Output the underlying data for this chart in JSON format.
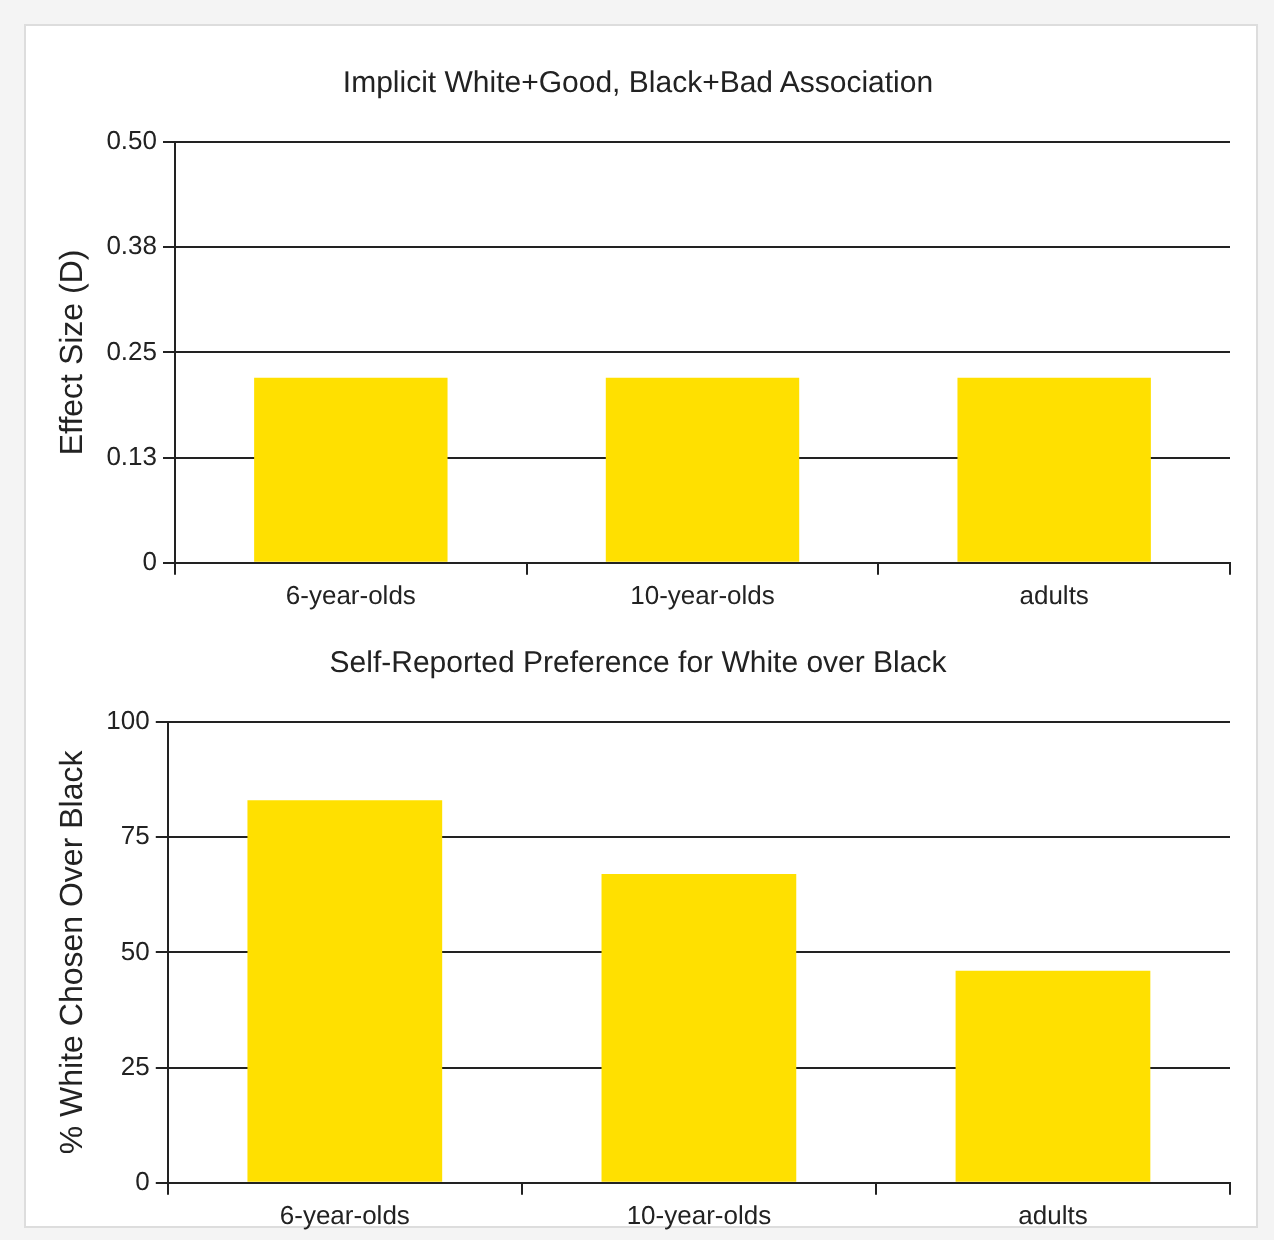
{
  "chart_data": [
    {
      "type": "bar",
      "title": "Implicit White+Good, Black+Bad Association",
      "ylabel": "Effect Size (D)",
      "categories": [
        "6-year-olds",
        "10-year-olds",
        "adults"
      ],
      "values": [
        0.22,
        0.22,
        0.22
      ],
      "color": "#ffe000",
      "ylim": [
        0,
        0.5
      ],
      "yticks": [
        0,
        {
          "value": 0.125,
          "label": "0.13"
        },
        {
          "value": 0.25,
          "label": "0.25"
        },
        {
          "value": 0.375,
          "label": "0.38"
        },
        {
          "value": 0.5,
          "label": "0.50"
        }
      ],
      "grid": "y",
      "legend": false
    },
    {
      "type": "bar",
      "title": "Self-Reported Preference for White over Black",
      "ylabel": "% White Chosen Over Black",
      "categories": [
        "6-year-olds",
        "10-year-olds",
        "adults"
      ],
      "values": [
        83,
        67,
        46
      ],
      "color": "#ffe000",
      "ylim": [
        0,
        100
      ],
      "yticks": [
        0,
        25,
        50,
        75,
        100
      ],
      "grid": "y",
      "legend": false
    }
  ]
}
